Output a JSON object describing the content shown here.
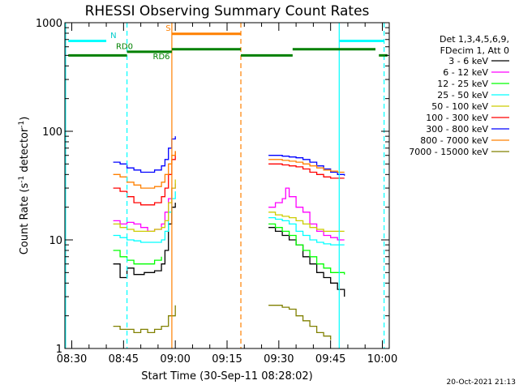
{
  "chart_data": {
    "type": "line",
    "title": "RHESSI Observing Summary Count Rates",
    "xlabel": "Start Time (30-Sep-11 08:28:02)",
    "ylabel_main": "Count Rate (s",
    "ylabel_sup": "-1",
    "ylabel_mid": " detector",
    "ylabel_sup2": "-1",
    "ylabel_end": ")",
    "xlim": [
      508,
      602
    ],
    "ylim": [
      1,
      1000
    ],
    "yscale": "log",
    "xticks": [
      {
        "v": 510,
        "label": "08:30"
      },
      {
        "v": 525,
        "label": "08:45"
      },
      {
        "v": 540,
        "label": "09:00"
      },
      {
        "v": 555,
        "label": "09:15"
      },
      {
        "v": 570,
        "label": "09:30"
      },
      {
        "v": 585,
        "label": "09:45"
      },
      {
        "v": 600,
        "label": "10:00"
      }
    ],
    "yticks": [
      {
        "v": 1,
        "label": "1"
      },
      {
        "v": 10,
        "label": "10"
      },
      {
        "v": 100,
        "label": "100"
      },
      {
        "v": 1000,
        "label": "1000"
      }
    ],
    "legend_header": [
      "Det 1,3,4,5,6,9,",
      "FDecim 1, Att 0"
    ],
    "series": [
      {
        "name": "3 - 6 keV",
        "color": "#000000",
        "segments": [
          [
            [
              522,
              6
            ],
            [
              524,
              4.5
            ],
            [
              526,
              5.5
            ],
            [
              528,
              4.8
            ],
            [
              531,
              5
            ],
            [
              534,
              5.2
            ],
            [
              536,
              6
            ],
            [
              537,
              8
            ],
            [
              538,
              14
            ],
            [
              539,
              20
            ],
            [
              540,
              22
            ]
          ],
          [
            [
              567,
              13
            ],
            [
              569,
              12
            ],
            [
              571,
              11
            ],
            [
              573,
              10
            ],
            [
              575,
              9
            ],
            [
              577,
              7
            ],
            [
              579,
              6
            ],
            [
              581,
              5
            ],
            [
              583,
              4.5
            ],
            [
              585,
              4
            ],
            [
              587,
              3.5
            ],
            [
              589,
              3
            ]
          ]
        ]
      },
      {
        "name": "6 - 12 keV",
        "color": "#ff00ff",
        "segments": [
          [
            [
              522,
              15
            ],
            [
              524,
              14
            ],
            [
              526,
              14.5
            ],
            [
              528,
              14
            ],
            [
              530,
              13
            ],
            [
              532,
              12
            ],
            [
              534,
              12.5
            ],
            [
              536,
              14
            ],
            [
              537,
              18
            ],
            [
              538,
              24
            ],
            [
              539,
              30
            ],
            [
              540,
              33
            ]
          ],
          [
            [
              567,
              20
            ],
            [
              569,
              22
            ],
            [
              571,
              24
            ],
            [
              572,
              30
            ],
            [
              573,
              25
            ],
            [
              575,
              20
            ],
            [
              577,
              18
            ],
            [
              579,
              14
            ],
            [
              581,
              12
            ],
            [
              583,
              11
            ],
            [
              585,
              10.5
            ],
            [
              587,
              10
            ],
            [
              589,
              10
            ]
          ]
        ]
      },
      {
        "name": "12 - 25 keV",
        "color": "#00ff00",
        "segments": [
          [
            [
              522,
              8
            ],
            [
              524,
              7
            ],
            [
              526,
              6.5
            ],
            [
              528,
              6
            ],
            [
              530,
              6
            ],
            [
              532,
              6
            ],
            [
              534,
              6.5
            ],
            [
              536,
              7
            ]
          ],
          [
            [
              567,
              14
            ],
            [
              569,
              13
            ],
            [
              571,
              12
            ],
            [
              573,
              11
            ],
            [
              575,
              9
            ],
            [
              577,
              8
            ],
            [
              579,
              7
            ],
            [
              581,
              6
            ],
            [
              583,
              5.5
            ],
            [
              585,
              5
            ],
            [
              587,
              5
            ],
            [
              589,
              4.8
            ]
          ]
        ]
      },
      {
        "name": "25 - 50 keV",
        "color": "#00ffff",
        "segments": [
          [
            [
              522,
              11
            ],
            [
              524,
              10.5
            ],
            [
              526,
              10
            ],
            [
              528,
              9.8
            ],
            [
              530,
              9.5
            ],
            [
              532,
              9.5
            ],
            [
              534,
              9.5
            ],
            [
              536,
              10
            ],
            [
              537,
              12
            ],
            [
              538,
              18
            ],
            [
              539,
              24
            ],
            [
              540,
              28
            ]
          ],
          [
            [
              567,
              16
            ],
            [
              569,
              15.5
            ],
            [
              571,
              15
            ],
            [
              573,
              14
            ],
            [
              575,
              12
            ],
            [
              577,
              11
            ],
            [
              579,
              10
            ],
            [
              581,
              9.5
            ],
            [
              583,
              9.2
            ],
            [
              585,
              9
            ],
            [
              587,
              9
            ],
            [
              589,
              9
            ]
          ]
        ]
      },
      {
        "name": "50 - 100 keV",
        "color": "#cccc00",
        "segments": [
          [
            [
              522,
              14
            ],
            [
              524,
              13
            ],
            [
              526,
              12.5
            ],
            [
              528,
              12
            ],
            [
              530,
              12
            ],
            [
              532,
              12
            ],
            [
              534,
              12.5
            ],
            [
              536,
              13
            ],
            [
              537,
              15
            ],
            [
              538,
              22
            ],
            [
              539,
              30
            ],
            [
              540,
              36
            ]
          ],
          [
            [
              567,
              18
            ],
            [
              569,
              17
            ],
            [
              571,
              16.5
            ],
            [
              573,
              16
            ],
            [
              575,
              15
            ],
            [
              577,
              14
            ],
            [
              579,
              13
            ],
            [
              581,
              12.5
            ],
            [
              583,
              12
            ],
            [
              585,
              12
            ],
            [
              587,
              12
            ],
            [
              589,
              12
            ]
          ]
        ]
      },
      {
        "name": "100 - 300 keV",
        "color": "#ff0000",
        "segments": [
          [
            [
              522,
              30
            ],
            [
              524,
              28
            ],
            [
              526,
              25
            ],
            [
              528,
              22
            ],
            [
              530,
              21
            ],
            [
              532,
              21
            ],
            [
              534,
              22
            ],
            [
              536,
              25
            ],
            [
              537,
              30
            ],
            [
              538,
              40
            ],
            [
              539,
              55
            ],
            [
              540,
              65
            ]
          ],
          [
            [
              567,
              50
            ],
            [
              569,
              50
            ],
            [
              571,
              49
            ],
            [
              573,
              48
            ],
            [
              575,
              47
            ],
            [
              577,
              45
            ],
            [
              579,
              42
            ],
            [
              581,
              40
            ],
            [
              583,
              38
            ],
            [
              585,
              37
            ],
            [
              587,
              37
            ],
            [
              589,
              37
            ]
          ]
        ]
      },
      {
        "name": "300 - 800 keV",
        "color": "#0000ff",
        "segments": [
          [
            [
              522,
              52
            ],
            [
              524,
              50
            ],
            [
              526,
              46
            ],
            [
              528,
              44
            ],
            [
              530,
              42
            ],
            [
              532,
              42
            ],
            [
              534,
              44
            ],
            [
              536,
              48
            ],
            [
              537,
              55
            ],
            [
              538,
              70
            ],
            [
              539,
              85
            ],
            [
              540,
              90
            ]
          ],
          [
            [
              567,
              60
            ],
            [
              569,
              60
            ],
            [
              571,
              59
            ],
            [
              573,
              58
            ],
            [
              575,
              57
            ],
            [
              577,
              55
            ],
            [
              579,
              52
            ],
            [
              581,
              48
            ],
            [
              583,
              45
            ],
            [
              585,
              42
            ],
            [
              587,
              40
            ],
            [
              589,
              39
            ]
          ]
        ]
      },
      {
        "name": "800 - 7000 keV",
        "color": "#ff8000",
        "segments": [
          [
            [
              522,
              40
            ],
            [
              524,
              38
            ],
            [
              526,
              34
            ],
            [
              528,
              32
            ],
            [
              530,
              30
            ],
            [
              532,
              30
            ],
            [
              534,
              31
            ],
            [
              536,
              34
            ],
            [
              537,
              40
            ],
            [
              538,
              50
            ],
            [
              539,
              60
            ],
            [
              540,
              66
            ]
          ],
          [
            [
              567,
              55
            ],
            [
              569,
              55
            ],
            [
              571,
              54
            ],
            [
              573,
              53
            ],
            [
              575,
              52
            ],
            [
              577,
              50
            ],
            [
              579,
              48
            ],
            [
              581,
              46
            ],
            [
              583,
              44
            ],
            [
              585,
              43
            ],
            [
              587,
              42
            ],
            [
              589,
              42
            ]
          ]
        ]
      },
      {
        "name": "7000 - 15000 keV",
        "color": "#808000",
        "segments": [
          [
            [
              522,
              1.6
            ],
            [
              524,
              1.5
            ],
            [
              526,
              1.5
            ],
            [
              528,
              1.4
            ],
            [
              530,
              1.5
            ],
            [
              532,
              1.4
            ],
            [
              534,
              1.5
            ],
            [
              536,
              1.6
            ],
            [
              538,
              2
            ],
            [
              540,
              2.5
            ]
          ],
          [
            [
              567,
              2.5
            ],
            [
              569,
              2.5
            ],
            [
              571,
              2.4
            ],
            [
              573,
              2.3
            ],
            [
              575,
              2
            ],
            [
              577,
              1.8
            ],
            [
              579,
              1.6
            ],
            [
              581,
              1.4
            ],
            [
              583,
              1.3
            ],
            [
              585,
              1.2
            ]
          ]
        ]
      }
    ],
    "annotations": {
      "rd0_label": "RD0",
      "rd6_label": "RD6",
      "n_label": "N",
      "s_label": "S"
    },
    "vlines": [
      {
        "x": 508.2,
        "color": "#00ffff",
        "style": "solid"
      },
      {
        "x": 526.0,
        "color": "#00ffff",
        "style": "dashed"
      },
      {
        "x": 539.0,
        "color": "#ff8000",
        "style": "solid"
      },
      {
        "x": 559.0,
        "color": "#ff8000",
        "style": "dashed"
      },
      {
        "x": 587.5,
        "color": "#00ffff",
        "style": "solid"
      },
      {
        "x": 600.5,
        "color": "#00ffff",
        "style": "dashed"
      }
    ],
    "hbars": [
      {
        "x0": 509,
        "x1": 520,
        "y": 680,
        "color": "#00ffff"
      },
      {
        "x0": 587.5,
        "x1": 600.5,
        "y": 680,
        "color": "#00ffff"
      },
      {
        "x0": 539,
        "x1": 559,
        "y": 790,
        "color": "#ff8000"
      },
      {
        "x0": 509,
        "x1": 526,
        "y": 500,
        "color": "#008000"
      },
      {
        "x0": 526,
        "x1": 539,
        "y": 540,
        "color": "#008000"
      },
      {
        "x0": 539,
        "x1": 559,
        "y": 570,
        "color": "#008000"
      },
      {
        "x0": 559,
        "x1": 574,
        "y": 500,
        "color": "#008000"
      },
      {
        "x0": 574,
        "x1": 598,
        "y": 570,
        "color": "#008000"
      },
      {
        "x0": 599,
        "x1": 601.5,
        "y": 500,
        "color": "#008000"
      }
    ],
    "timestamp": "20-Oct-2021 21:13"
  }
}
